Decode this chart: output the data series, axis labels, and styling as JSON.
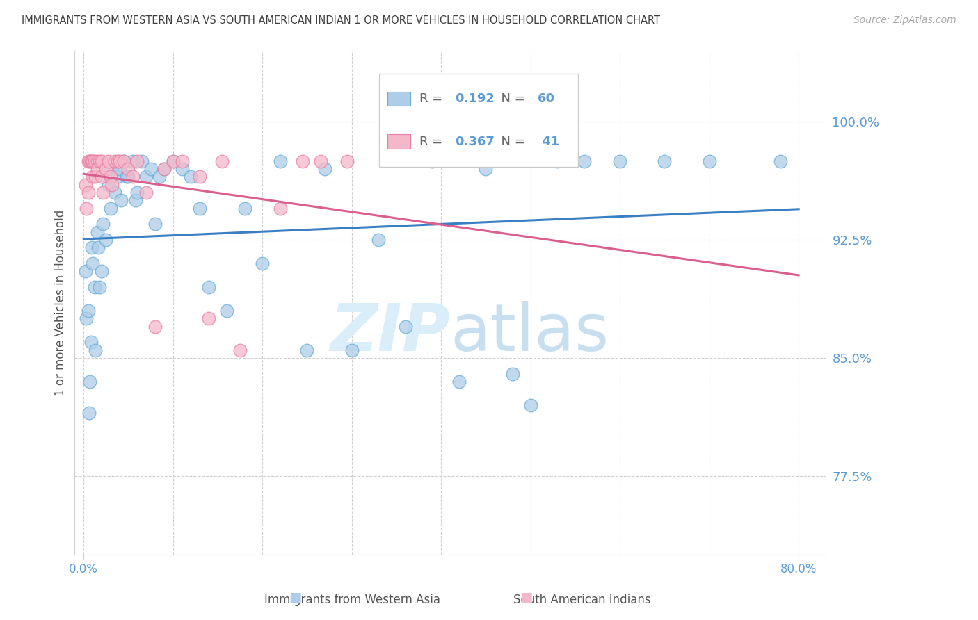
{
  "title": "IMMIGRANTS FROM WESTERN ASIA VS SOUTH AMERICAN INDIAN 1 OR MORE VEHICLES IN HOUSEHOLD CORRELATION CHART",
  "source": "Source: ZipAtlas.com",
  "ylabel": "1 or more Vehicles in Household",
  "yticks": [
    0.775,
    0.85,
    0.925,
    1.0
  ],
  "ytick_labels": [
    "77.5%",
    "85.0%",
    "92.5%",
    "100.0%"
  ],
  "xlim": [
    -0.01,
    0.83
  ],
  "ylim": [
    0.725,
    1.045
  ],
  "blue_R": 0.192,
  "blue_N": 60,
  "pink_R": 0.367,
  "pink_N": 41,
  "blue_label": "Immigrants from Western Asia",
  "pink_label": "South American Indians",
  "blue_color": "#aecde8",
  "pink_color": "#f5b8ca",
  "blue_edge_color": "#6aaed6",
  "pink_edge_color": "#e87fa5",
  "blue_line_color": "#3a7fc1",
  "pink_line_color": "#d95f8e",
  "title_color": "#404040",
  "source_color": "#aaaaaa",
  "axis_label_color": "#5b9bd5",
  "watermark_color": "#daeef9",
  "grid_color": "#d0d0d0",
  "blue_scatter_x": [
    0.002,
    0.003,
    0.005,
    0.006,
    0.007,
    0.008,
    0.009,
    0.01,
    0.012,
    0.013,
    0.015,
    0.016,
    0.018,
    0.02,
    0.022,
    0.025,
    0.028,
    0.03,
    0.032,
    0.035,
    0.038,
    0.04,
    0.042,
    0.045,
    0.048,
    0.05,
    0.055,
    0.058,
    0.06,
    0.065,
    0.07,
    0.075,
    0.08,
    0.085,
    0.09,
    0.1,
    0.11,
    0.12,
    0.13,
    0.14,
    0.16,
    0.18,
    0.2,
    0.22,
    0.25,
    0.27,
    0.3,
    0.33,
    0.36,
    0.39,
    0.42,
    0.45,
    0.48,
    0.5,
    0.53,
    0.56,
    0.6,
    0.65,
    0.7,
    0.78
  ],
  "blue_scatter_y": [
    0.905,
    0.875,
    0.88,
    0.815,
    0.835,
    0.86,
    0.92,
    0.91,
    0.895,
    0.855,
    0.93,
    0.92,
    0.895,
    0.905,
    0.935,
    0.925,
    0.96,
    0.945,
    0.97,
    0.955,
    0.965,
    0.97,
    0.95,
    0.975,
    0.965,
    0.965,
    0.975,
    0.95,
    0.955,
    0.975,
    0.965,
    0.97,
    0.935,
    0.965,
    0.97,
    0.975,
    0.97,
    0.965,
    0.945,
    0.895,
    0.88,
    0.945,
    0.91,
    0.975,
    0.855,
    0.97,
    0.855,
    0.925,
    0.87,
    0.975,
    0.835,
    0.97,
    0.84,
    0.82,
    0.975,
    0.975,
    0.975,
    0.975,
    0.975,
    0.975
  ],
  "pink_scatter_x": [
    0.002,
    0.003,
    0.005,
    0.005,
    0.007,
    0.008,
    0.009,
    0.01,
    0.01,
    0.012,
    0.013,
    0.015,
    0.015,
    0.018,
    0.02,
    0.02,
    0.022,
    0.025,
    0.028,
    0.03,
    0.032,
    0.035,
    0.038,
    0.04,
    0.045,
    0.05,
    0.055,
    0.06,
    0.07,
    0.08,
    0.09,
    0.1,
    0.11,
    0.13,
    0.14,
    0.155,
    0.175,
    0.22,
    0.245,
    0.265,
    0.295
  ],
  "pink_scatter_y": [
    0.96,
    0.945,
    0.975,
    0.955,
    0.975,
    0.975,
    0.975,
    0.975,
    0.965,
    0.975,
    0.965,
    0.975,
    0.97,
    0.975,
    0.975,
    0.965,
    0.955,
    0.97,
    0.975,
    0.965,
    0.96,
    0.975,
    0.975,
    0.975,
    0.975,
    0.97,
    0.965,
    0.975,
    0.955,
    0.87,
    0.97,
    0.975,
    0.975,
    0.965,
    0.875,
    0.975,
    0.855,
    0.945,
    0.975,
    0.975,
    0.975
  ]
}
